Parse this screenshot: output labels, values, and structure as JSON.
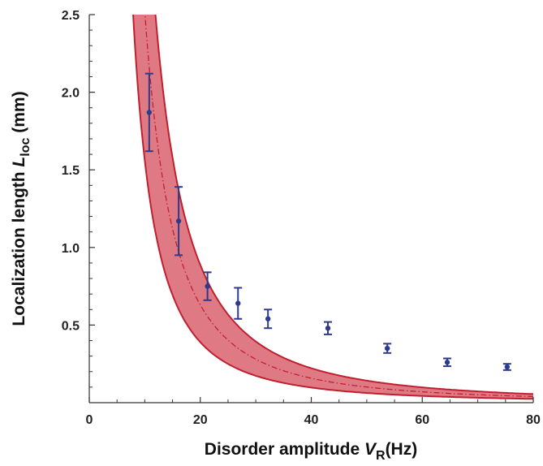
{
  "chart_data": {
    "type": "scatter",
    "xlabel": {
      "prefix": "Disorder amplitude ",
      "var": "V",
      "sub": "R",
      "suffix": "(Hz)"
    },
    "ylabel": {
      "prefix": "Localization length ",
      "var": "L",
      "sub": "loc",
      "suffix": " (mm)"
    },
    "xlim": [
      0,
      80
    ],
    "ylim": [
      0,
      2.5
    ],
    "x_ticks": [
      0,
      20,
      40,
      60,
      80
    ],
    "x_tick_labels": [
      "0",
      "20",
      "40",
      "60",
      "80"
    ],
    "y_ticks": [
      0.5,
      1.0,
      1.5,
      2.0,
      2.5
    ],
    "y_tick_labels": [
      "0.5",
      "1.0",
      "1.5",
      "2.0",
      "2.5"
    ],
    "grid": false,
    "legend": "none",
    "points": [
      {
        "x": 10.8,
        "y": 1.87,
        "err": 0.25
      },
      {
        "x": 16.1,
        "y": 1.17,
        "err": 0.22
      },
      {
        "x": 21.3,
        "y": 0.75,
        "err": 0.09
      },
      {
        "x": 26.8,
        "y": 0.64,
        "err": 0.1
      },
      {
        "x": 32.2,
        "y": 0.54,
        "err": 0.06
      },
      {
        "x": 43.0,
        "y": 0.48,
        "err": 0.04
      },
      {
        "x": 53.7,
        "y": 0.35,
        "err": 0.03
      },
      {
        "x": 64.5,
        "y": 0.26,
        "err": 0.025
      },
      {
        "x": 75.3,
        "y": 0.23,
        "err": 0.02
      }
    ],
    "band": {
      "upper": {
        "A": 355,
        "p": 2
      },
      "center": {
        "A": 252,
        "p": 2
      },
      "lower": {
        "A": 156,
        "p": 2
      }
    },
    "colors": {
      "band_fill": "#d9636e",
      "band_edge": "#c01f2f",
      "center_line": "#c01f2f",
      "points": "#2e3a8c",
      "axis": "#333333"
    }
  }
}
